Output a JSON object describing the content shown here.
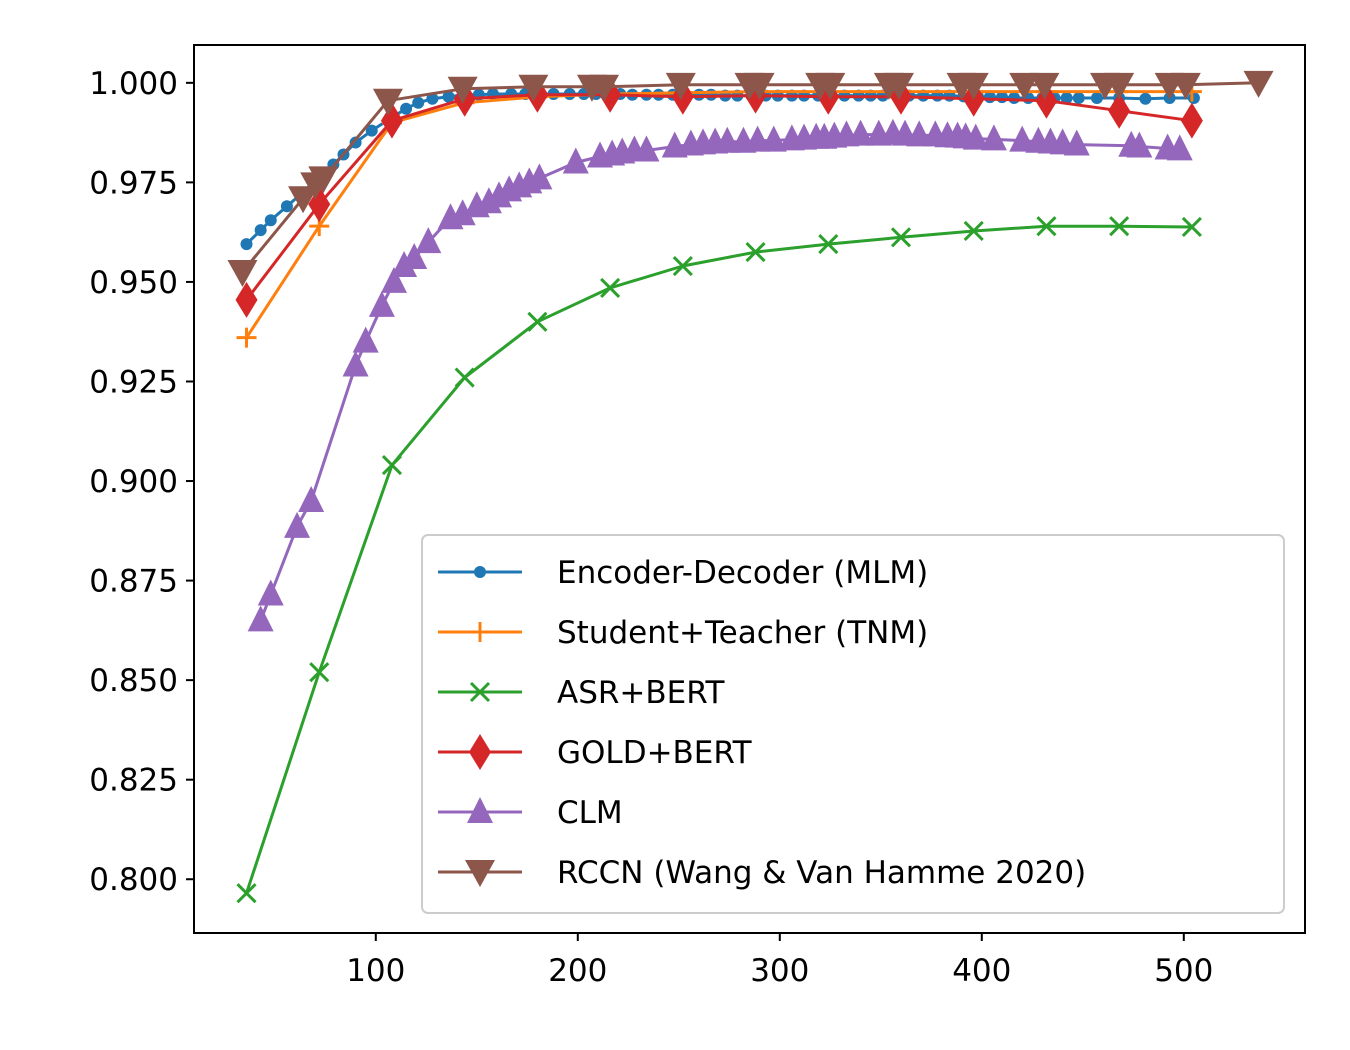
{
  "chart_data": {
    "type": "line",
    "title": "",
    "xlabel": "",
    "ylabel": "",
    "xlim": [
      10,
      560
    ],
    "ylim": [
      0.7865,
      1.0095
    ],
    "xticks": [
      100,
      200,
      300,
      400,
      500
    ],
    "yticks": [
      0.8,
      0.825,
      0.85,
      0.875,
      0.9,
      0.925,
      0.95,
      0.975,
      1.0
    ],
    "xtick_labels": [
      "100",
      "200",
      "300",
      "400",
      "500"
    ],
    "ytick_labels": [
      "0.800",
      "0.825",
      "0.850",
      "0.875",
      "0.900",
      "0.925",
      "0.950",
      "0.975",
      "1.000"
    ],
    "grid": false,
    "legend_position": "lower-right",
    "series": [
      {
        "name": "Encoder-Decoder (MLM)",
        "color": "#1f77b4",
        "marker": "dot",
        "x": [
          36,
          43,
          48,
          56,
          64,
          71,
          79,
          84,
          90,
          98,
          107,
          115,
          121,
          128,
          136,
          144,
          151,
          158,
          167,
          174,
          181,
          188,
          196,
          203,
          209,
          216,
          221,
          227,
          234,
          240,
          247,
          253,
          260,
          266,
          273,
          279,
          286,
          293,
          299,
          306,
          312,
          319,
          325,
          332,
          339,
          345,
          351,
          358,
          364,
          371,
          378,
          384,
          391,
          398,
          404,
          410,
          416,
          423,
          430,
          436,
          442,
          448,
          457,
          468,
          481,
          493,
          505
        ],
        "y": [
          0.9595,
          0.963,
          0.9655,
          0.969,
          0.9725,
          0.976,
          0.9795,
          0.982,
          0.985,
          0.988,
          0.991,
          0.9935,
          0.995,
          0.996,
          0.9965,
          0.997,
          0.997,
          0.9972,
          0.9972,
          0.9972,
          0.9972,
          0.9972,
          0.9972,
          0.9972,
          0.9972,
          0.9972,
          0.9972,
          0.997,
          0.997,
          0.997,
          0.997,
          0.997,
          0.997,
          0.997,
          0.9968,
          0.9968,
          0.9968,
          0.9968,
          0.9968,
          0.9968,
          0.9968,
          0.9968,
          0.9968,
          0.9968,
          0.9968,
          0.9968,
          0.9968,
          0.9968,
          0.9968,
          0.9968,
          0.9968,
          0.9968,
          0.9966,
          0.9966,
          0.9964,
          0.9964,
          0.9962,
          0.9962,
          0.9962,
          0.9962,
          0.9962,
          0.9962,
          0.9962,
          0.9962,
          0.996,
          0.9962,
          0.9962
        ]
      },
      {
        "name": "Student+Teacher (TNM)",
        "color": "#ff7f0e",
        "marker": "plus",
        "x": [
          36,
          72,
          108,
          144,
          180,
          216,
          252,
          288,
          324,
          360,
          396,
          432,
          468,
          504
        ],
        "y": [
          0.936,
          0.964,
          0.99,
          0.995,
          0.9965,
          0.9972,
          0.9975,
          0.9978,
          0.9978,
          0.9978,
          0.9978,
          0.9978,
          0.9978,
          0.9978
        ]
      },
      {
        "name": "ASR+BERT",
        "color": "#2ca02c",
        "marker": "x",
        "x": [
          36,
          72,
          108,
          144,
          180,
          216,
          252,
          288,
          324,
          360,
          396,
          432,
          468,
          504
        ],
        "y": [
          0.7965,
          0.852,
          0.904,
          0.926,
          0.94,
          0.9485,
          0.954,
          0.9575,
          0.9595,
          0.9612,
          0.9628,
          0.964,
          0.964,
          0.9638
        ]
      },
      {
        "name": "GOLD+BERT",
        "color": "#d62728",
        "marker": "diamond",
        "x": [
          36,
          72,
          108,
          144,
          180,
          216,
          252,
          288,
          324,
          360,
          396,
          432,
          468,
          504
        ],
        "y": [
          0.9455,
          0.9695,
          0.9905,
          0.996,
          0.997,
          0.997,
          0.9965,
          0.9968,
          0.9965,
          0.9965,
          0.996,
          0.9955,
          0.993,
          0.9905
        ]
      },
      {
        "name": "CLM",
        "color": "#9467bd",
        "marker": "triangle-up",
        "x": [
          43,
          48,
          61,
          68,
          90,
          95,
          103,
          109,
          114,
          119,
          126,
          137,
          143,
          150,
          156,
          161,
          166,
          171,
          176,
          181,
          199,
          211,
          217,
          222,
          228,
          234,
          248,
          256,
          262,
          268,
          274,
          282,
          289,
          297,
          306,
          312,
          318,
          322,
          327,
          333,
          340,
          349,
          356,
          362,
          369,
          377,
          383,
          388,
          392,
          397,
          406,
          420,
          428,
          434,
          440,
          447,
          474,
          478,
          492,
          498
        ],
        "y": [
          0.865,
          0.8715,
          0.8885,
          0.895,
          0.929,
          0.935,
          0.944,
          0.95,
          0.954,
          0.956,
          0.96,
          0.966,
          0.967,
          0.969,
          0.97,
          0.9715,
          0.973,
          0.974,
          0.975,
          0.976,
          0.98,
          0.9815,
          0.982,
          0.9825,
          0.983,
          0.983,
          0.984,
          0.9845,
          0.9848,
          0.985,
          0.9852,
          0.9852,
          0.9855,
          0.9855,
          0.9858,
          0.986,
          0.9862,
          0.9862,
          0.9865,
          0.9868,
          0.987,
          0.987,
          0.9872,
          0.987,
          0.9868,
          0.9868,
          0.9866,
          0.9865,
          0.9863,
          0.986,
          0.9858,
          0.9855,
          0.9852,
          0.985,
          0.9848,
          0.9845,
          0.9842,
          0.984,
          0.9835,
          0.9833
        ]
      },
      {
        "name": "RCCN (Wang & Van Hamme 2020)",
        "color": "#8c564b",
        "marker": "triangle-down",
        "x": [
          34,
          64,
          70,
          74,
          106,
          143,
          178,
          207,
          213,
          251,
          285,
          290,
          320,
          325,
          354,
          359,
          390,
          396,
          421,
          431,
          461,
          468,
          493,
          501,
          537
        ],
        "y": [
          0.9525,
          0.971,
          0.9745,
          0.976,
          0.9955,
          0.9985,
          0.999,
          0.999,
          0.999,
          0.9995,
          0.9995,
          0.9995,
          0.9995,
          0.9995,
          0.9995,
          0.9995,
          0.9995,
          0.9995,
          0.9995,
          0.9995,
          0.9995,
          0.9995,
          0.9995,
          0.9995,
          1.0
        ]
      }
    ]
  }
}
